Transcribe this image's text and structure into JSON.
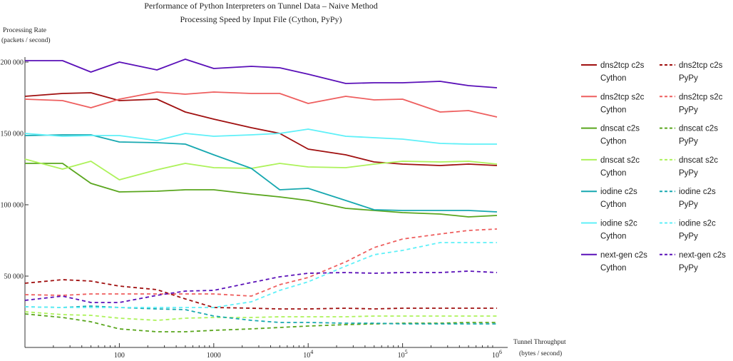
{
  "chart_data": {
    "type": "line",
    "title": "Performance of Python Interpreters on Tunnel Data – Naive Method",
    "subtitle": "Processing Speed by Input File (Cython, PyPy)",
    "ylabel": [
      "Processing Rate",
      "(packets / second)"
    ],
    "xlabel": [
      "Tunnel Throughput",
      "(bytes / second)"
    ],
    "x_scale": "log",
    "xlim": [
      10,
      1000000
    ],
    "ylim": [
      0,
      210000
    ],
    "x_ticks": [
      {
        "value": 100,
        "base": "100",
        "exp": ""
      },
      {
        "value": 1000,
        "base": "1000",
        "exp": ""
      },
      {
        "value": 10000,
        "base": "10",
        "exp": "4"
      },
      {
        "value": 100000,
        "base": "10",
        "exp": "5"
      },
      {
        "value": 1000000,
        "base": "10",
        "exp": "6"
      }
    ],
    "y_ticks": [
      {
        "value": 50000,
        "label": "50 000"
      },
      {
        "value": 100000,
        "label": "100 000"
      },
      {
        "value": 150000,
        "label": "150 000"
      },
      {
        "value": 200000,
        "label": "200 000"
      }
    ],
    "x": [
      10,
      25,
      50,
      100,
      250,
      500,
      1000,
      2500,
      5000,
      10000,
      25000,
      50000,
      100000,
      250000,
      500000,
      1000000
    ],
    "series": [
      {
        "name": [
          "dns2tcp c2s",
          "Cython"
        ],
        "color": "#a01010",
        "dash": false,
        "values": [
          176000,
          178000,
          178500,
          173000,
          174000,
          165000,
          160000,
          154000,
          150000,
          139000,
          135000,
          130000,
          128500,
          127500,
          128500,
          127500
        ]
      },
      {
        "name": [
          "dns2tcp s2c",
          "Cython"
        ],
        "color": "#ee5f5f",
        "dash": false,
        "values": [
          174000,
          173000,
          168000,
          174000,
          179000,
          177500,
          179000,
          178000,
          178000,
          171000,
          176000,
          173500,
          174000,
          165000,
          166000,
          161500
        ]
      },
      {
        "name": [
          "dnscat c2s",
          "Cython"
        ],
        "color": "#5aa61e",
        "dash": false,
        "values": [
          129000,
          129000,
          115000,
          109000,
          109500,
          110500,
          110500,
          107500,
          105500,
          103000,
          97500,
          96000,
          94500,
          93500,
          91500,
          92500
        ]
      },
      {
        "name": [
          "dnscat s2c",
          "Cython"
        ],
        "color": "#adf25a",
        "dash": false,
        "values": [
          132000,
          125000,
          130500,
          117500,
          124500,
          129000,
          126000,
          125500,
          129000,
          126500,
          126000,
          128500,
          130500,
          130000,
          130500,
          128500
        ]
      },
      {
        "name": [
          "iodine c2s",
          "Cython"
        ],
        "color": "#17a8b0",
        "dash": false,
        "values": [
          148500,
          149000,
          149000,
          144000,
          143500,
          142500,
          135000,
          125500,
          110500,
          111500,
          103000,
          96500,
          96000,
          96000,
          96000,
          95000
        ]
      },
      {
        "name": [
          "iodine s2c",
          "Cython"
        ],
        "color": "#5ff0f8",
        "dash": false,
        "values": [
          150000,
          148000,
          148500,
          148500,
          145000,
          150000,
          148000,
          149000,
          150000,
          153000,
          148000,
          147000,
          146000,
          143000,
          142500,
          142500
        ]
      },
      {
        "name": [
          "next-gen c2s",
          "Cython"
        ],
        "color": "#5a10b8",
        "dash": false,
        "values": [
          201000,
          201000,
          193000,
          200000,
          194500,
          202000,
          195500,
          197000,
          196000,
          191500,
          185000,
          185500,
          185500,
          186500,
          183500,
          182000
        ]
      },
      {
        "name": [
          "dns2tcp c2s",
          "PyPy"
        ],
        "color": "#a01010",
        "dash": true,
        "values": [
          45000,
          47500,
          46500,
          43000,
          40500,
          34000,
          28000,
          27500,
          27000,
          27000,
          27500,
          27000,
          27500,
          27500,
          27500,
          27500
        ]
      },
      {
        "name": [
          "dns2tcp s2c",
          "PyPy"
        ],
        "color": "#ee5f5f",
        "dash": true,
        "values": [
          37000,
          36500,
          37500,
          37500,
          37500,
          37500,
          37500,
          36000,
          44000,
          49000,
          60000,
          70000,
          76000,
          79500,
          82000,
          83000
        ]
      },
      {
        "name": [
          "dnscat c2s",
          "PyPy"
        ],
        "color": "#5aa61e",
        "dash": true,
        "values": [
          23500,
          21000,
          18000,
          13000,
          11000,
          11000,
          12000,
          13000,
          14000,
          15000,
          16000,
          16500,
          17000,
          17000,
          17500,
          17500
        ]
      },
      {
        "name": [
          "dnscat s2c",
          "PyPy"
        ],
        "color": "#adf25a",
        "dash": true,
        "values": [
          25000,
          23000,
          22500,
          20500,
          19000,
          20500,
          21000,
          21000,
          21500,
          21500,
          21500,
          22000,
          22000,
          22000,
          22000,
          22000
        ]
      },
      {
        "name": [
          "iodine c2s",
          "PyPy"
        ],
        "color": "#17a8b0",
        "dash": true,
        "values": [
          28500,
          28000,
          29000,
          28000,
          27000,
          26500,
          22000,
          19000,
          17500,
          17500,
          17000,
          17000,
          16500,
          16500,
          16500,
          16500
        ]
      },
      {
        "name": [
          "iodine s2c",
          "PyPy"
        ],
        "color": "#5ff0f8",
        "dash": true,
        "values": [
          28500,
          28000,
          28000,
          28000,
          28000,
          28000,
          28000,
          32000,
          40000,
          46000,
          57000,
          65000,
          68000,
          73500,
          73500,
          73500
        ]
      },
      {
        "name": [
          "next-gen c2s",
          "PyPy"
        ],
        "color": "#5a10b8",
        "dash": true,
        "values": [
          33000,
          36000,
          31500,
          31500,
          36500,
          39500,
          40000,
          45500,
          49500,
          52000,
          52500,
          52000,
          52500,
          52500,
          53500,
          52500
        ]
      }
    ],
    "legend_position": "right",
    "grid": false
  }
}
